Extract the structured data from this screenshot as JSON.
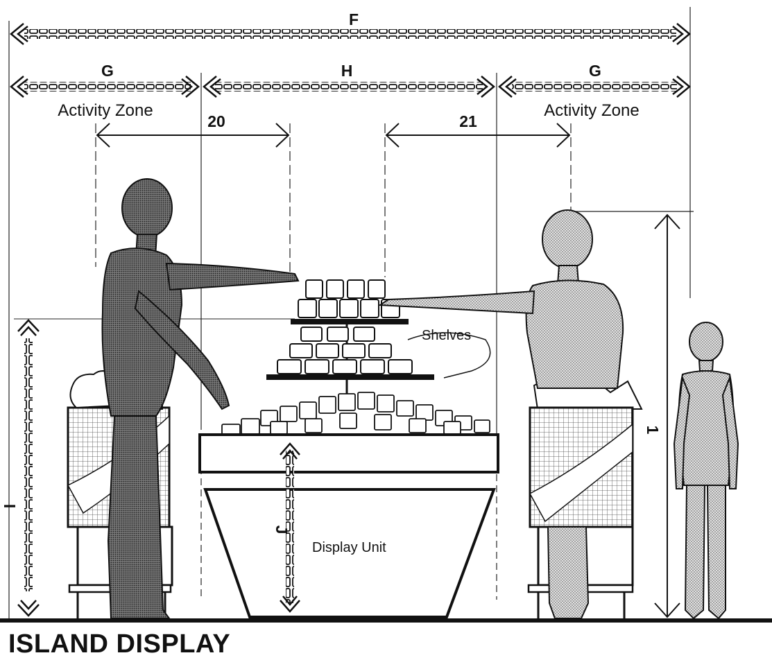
{
  "title": "ISLAND DISPLAY",
  "dimensions": {
    "F": "F",
    "G_left": "G",
    "H": "H",
    "G_right": "G",
    "d20": "20",
    "d21": "21",
    "I": "I",
    "J": "J",
    "d1": "1"
  },
  "zones": {
    "left": "Activity Zone",
    "right": "Activity Zone"
  },
  "callouts": {
    "shelves": "Shelves",
    "display_unit": "Display Unit"
  }
}
